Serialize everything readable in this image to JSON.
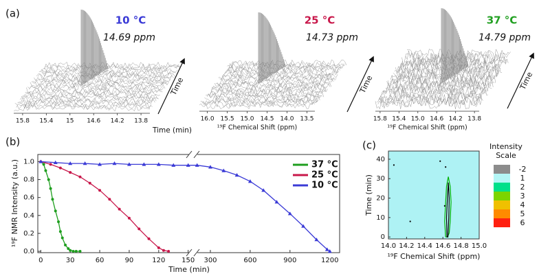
{
  "chart_data": [
    {
      "type": "waterfall",
      "panel": "(a)",
      "title": "10 °C",
      "subtitle": "14.69 ppm",
      "color": "#3a3ad6",
      "xlim": [
        15.95,
        13.65
      ],
      "xticks": [
        15.8,
        15.4,
        15.0,
        14.6,
        14.2,
        13.8
      ],
      "arrow_label": "Time",
      "note": "Time (min)"
    },
    {
      "type": "waterfall",
      "title": "25 °C",
      "subtitle": "14.73 ppm",
      "color": "#c8174a",
      "xlim": [
        16.2,
        13.3
      ],
      "xticks": [
        {
          "value": 16.0,
          "label": "16.0"
        },
        15.5,
        {
          "value": 15.0,
          "label": "15.0"
        },
        14.5,
        {
          "value": 14.0,
          "label": "14.0"
        },
        13.5
      ],
      "xlabel": "¹⁹F Chemical Shift (ppm)",
      "arrow_label": "Time"
    },
    {
      "type": "waterfall",
      "title": "37 °C",
      "subtitle": "14.79 ppm",
      "color": "#22a022",
      "xlim": [
        15.9,
        13.7
      ],
      "xticks": [
        15.8,
        15.4,
        {
          "value": 15.0,
          "label": "15.0"
        },
        14.6,
        14.2,
        13.8
      ],
      "xlabel": "¹⁹F Chemical Shift (ppm)",
      "arrow_label": "Time"
    },
    {
      "type": "line",
      "panel": "(b)",
      "xlabel": "Time (min)",
      "ylabel": "¹⁹F NMR Intensity (a.u.)",
      "segments": [
        {
          "xlim": [
            -3,
            153
          ],
          "xticks": [
            0,
            30,
            60,
            90,
            120,
            150
          ]
        },
        {
          "xlim": [
            186,
            1274
          ],
          "xticks": [
            300,
            600,
            900,
            1200
          ]
        }
      ],
      "ylim": [
        -0.015,
        1.08
      ],
      "yticks": [
        {
          "value": 0,
          "label": "0.0"
        },
        0.2,
        0.4,
        0.6,
        0.8,
        {
          "value": 1,
          "label": "1.0"
        }
      ],
      "legend": "upper right",
      "series": [
        {
          "name": "37 °C",
          "color": "#1e9e1e",
          "marker": "circle",
          "x": [
            0,
            3,
            5,
            8,
            10,
            12,
            15,
            18,
            20,
            22,
            25,
            28,
            30,
            33,
            36,
            40
          ],
          "values": [
            1.0,
            0.97,
            0.9,
            0.8,
            0.7,
            0.58,
            0.45,
            0.33,
            0.22,
            0.15,
            0.07,
            0.03,
            0.01,
            0,
            0,
            0
          ]
        },
        {
          "name": "25 °C",
          "color": "#c8174a",
          "marker": "circle",
          "x": [
            0,
            10,
            20,
            30,
            40,
            50,
            60,
            70,
            80,
            90,
            100,
            110,
            120,
            125,
            130
          ],
          "values": [
            1.0,
            0.97,
            0.93,
            0.88,
            0.83,
            0.76,
            0.68,
            0.58,
            0.47,
            0.37,
            0.25,
            0.14,
            0.04,
            0.01,
            0
          ]
        },
        {
          "name": "10 °C",
          "color": "#3a3ad6",
          "marker": "triangle",
          "x": [
            0,
            15,
            30,
            45,
            60,
            75,
            90,
            105,
            120,
            135,
            150,
            200,
            300,
            400,
            500,
            600,
            700,
            800,
            900,
            1000,
            1100,
            1180,
            1200
          ],
          "values": [
            1.0,
            0.99,
            0.98,
            0.98,
            0.97,
            0.98,
            0.97,
            0.97,
            0.97,
            0.96,
            0.96,
            0.96,
            0.94,
            0.9,
            0.85,
            0.78,
            0.68,
            0.55,
            0.42,
            0.28,
            0.13,
            0.02,
            0
          ]
        }
      ]
    },
    {
      "type": "contour",
      "panel": "(c)",
      "xlabel": "¹⁹F Chemical Shift (ppm)",
      "ylabel": "Time (min)",
      "xlim": [
        14.0,
        15.0
      ],
      "xticks": [
        {
          "value": 14.0,
          "label": "14.0"
        },
        14.2,
        14.4,
        14.6,
        14.8,
        {
          "value": 15.0,
          "label": "15.0"
        }
      ],
      "ylim": [
        -1,
        44.2
      ],
      "yticks": [
        0,
        10,
        20,
        30,
        40
      ],
      "background": "#aef2f4",
      "series": [
        {
          "color": "#00b000",
          "x": [
            14.63,
            14.62,
            14.63,
            14.64,
            14.66,
            14.68,
            14.69,
            14.68,
            14.67,
            14.65,
            14.63
          ],
          "values": [
            0,
            8,
            18,
            26,
            31,
            26,
            18,
            8,
            2,
            0,
            0
          ]
        },
        {
          "color": "#000000",
          "x": [
            14.645,
            14.64,
            14.65,
            14.66,
            14.67,
            14.665,
            14.655,
            14.645
          ],
          "values": [
            0,
            10,
            20,
            28,
            20,
            10,
            0,
            0
          ]
        }
      ],
      "dots": {
        "x": [
          14.06,
          14.24,
          14.57,
          14.63,
          14.62
        ],
        "values": [
          37,
          8,
          39,
          36,
          16
        ]
      },
      "scale": {
        "title": "Intensity Scale",
        "levels": [
          -2,
          1,
          2,
          3,
          4,
          5,
          6
        ],
        "colors": [
          "#8c8c8c",
          "#b4f6f6",
          "#00e08a",
          "#7cd400",
          "#f0c000",
          "#ff8a00",
          "#ff2010"
        ]
      }
    }
  ]
}
